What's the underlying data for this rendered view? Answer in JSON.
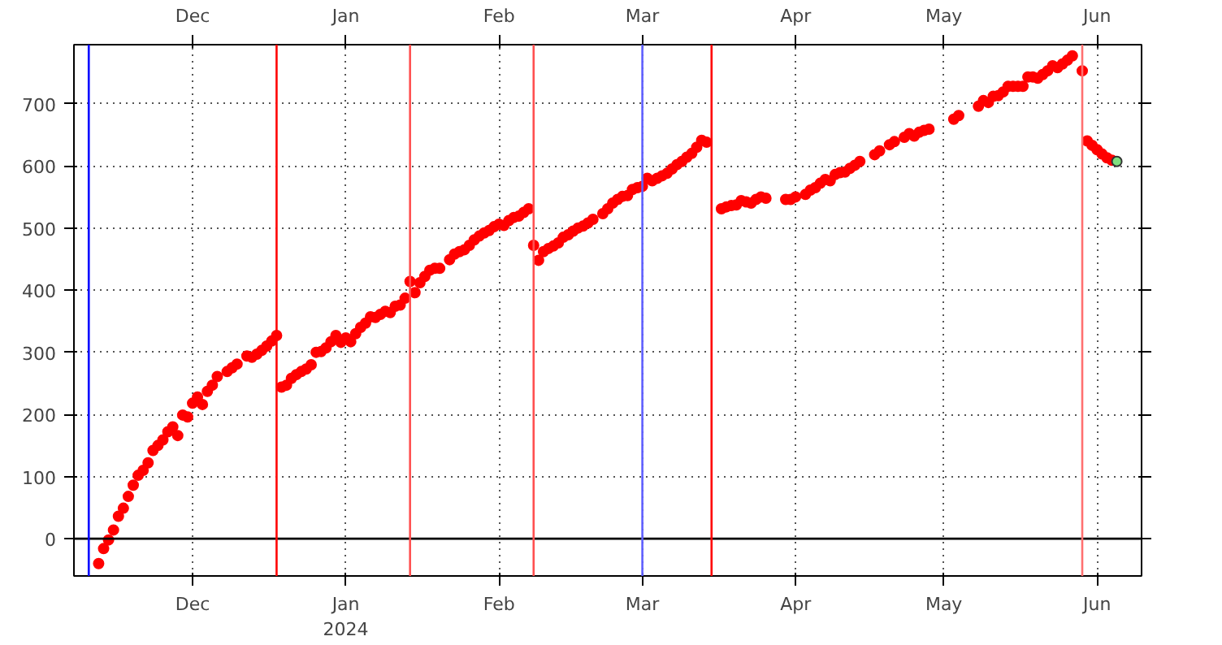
{
  "chart_data": {
    "type": "scatter",
    "xlim": [
      "2023-11-07",
      "2024-06-10"
    ],
    "ylim": [
      -60,
      795
    ],
    "xticks": [
      {
        "value": "2023-12-01",
        "label": "Dec"
      },
      {
        "value": "2024-01-01",
        "label": "Jan\n2024"
      },
      {
        "value": "2024-02-01",
        "label": "Feb"
      },
      {
        "value": "2024-03-01",
        "label": "Mar"
      },
      {
        "value": "2024-04-01",
        "label": "Apr"
      },
      {
        "value": "2024-05-01",
        "label": "May"
      },
      {
        "value": "2024-06-01",
        "label": "Jun"
      }
    ],
    "x2lim": [
      "2023-11-07",
      "2024-06-10"
    ],
    "x2ticks": [
      {
        "value": "2023-12-01",
        "label": "Dec"
      },
      {
        "value": "2024-01-01",
        "label": "Jan"
      },
      {
        "value": "2024-02-01",
        "label": "Feb"
      },
      {
        "value": "2024-03-01",
        "label": "Mar"
      },
      {
        "value": "2024-04-01",
        "label": "Apr"
      },
      {
        "value": "2024-05-01",
        "label": "May"
      },
      {
        "value": "2024-06-01",
        "label": "Jun"
      }
    ],
    "yticks": [
      0,
      100,
      200,
      300,
      400,
      500,
      600,
      700
    ],
    "grid": true,
    "marker": "circle",
    "ref_lines": [
      {
        "axis": "y",
        "value": 0,
        "color": "#000000"
      },
      {
        "axis": "x",
        "value": "2023-11-10",
        "color": "#0000ff"
      },
      {
        "axis": "x",
        "value": "2023-12-18",
        "color": "#ff0000"
      },
      {
        "axis": "x",
        "value": "2024-01-14",
        "color": "#ff5050"
      },
      {
        "axis": "x",
        "value": "2024-02-08",
        "color": "#ff5050"
      },
      {
        "axis": "x",
        "value": "2024-03-01",
        "color": "#6060ff"
      },
      {
        "axis": "x",
        "value": "2024-03-15",
        "color": "#ff0000"
      },
      {
        "axis": "x",
        "value": "2024-05-29",
        "color": "#ff7070"
      }
    ],
    "series": [
      {
        "color": "#ff0000",
        "x": [
          "2023-11-12",
          "2023-11-13",
          "2023-11-14",
          "2023-11-15",
          "2023-11-16",
          "2023-11-17",
          "2023-11-18",
          "2023-11-19",
          "2023-11-20",
          "2023-11-21",
          "2023-11-22",
          "2023-11-23",
          "2023-11-24",
          "2023-11-25",
          "2023-11-26",
          "2023-11-27",
          "2023-11-28",
          "2023-11-29",
          "2023-11-30",
          "2023-12-01",
          "2023-12-02",
          "2023-12-03",
          "2023-12-04",
          "2023-12-05",
          "2023-12-06",
          "2023-12-08",
          "2023-12-09",
          "2023-12-10",
          "2023-12-12",
          "2023-12-13",
          "2023-12-14",
          "2023-12-15",
          "2023-12-16",
          "2023-12-17",
          "2023-12-18",
          "2023-12-19",
          "2023-12-20",
          "2023-12-21",
          "2023-12-22",
          "2023-12-23",
          "2023-12-24",
          "2023-12-25",
          "2023-12-26",
          "2023-12-27",
          "2023-12-28",
          "2023-12-29",
          "2023-12-30",
          "2023-12-31",
          "2024-01-01",
          "2024-01-02",
          "2024-01-03",
          "2024-01-04",
          "2024-01-05",
          "2024-01-06",
          "2024-01-07",
          "2024-01-08",
          "2024-01-09",
          "2024-01-10",
          "2024-01-11",
          "2024-01-12",
          "2024-01-13",
          "2024-01-14",
          "2024-01-15",
          "2024-01-16",
          "2024-01-17",
          "2024-01-18",
          "2024-01-19",
          "2024-01-20",
          "2024-01-22",
          "2024-01-23",
          "2024-01-24",
          "2024-01-25",
          "2024-01-26",
          "2024-01-27",
          "2024-01-28",
          "2024-01-29",
          "2024-01-30",
          "2024-01-31",
          "2024-02-01",
          "2024-02-02",
          "2024-02-03",
          "2024-02-04",
          "2024-02-05",
          "2024-02-06",
          "2024-02-07",
          "2024-02-08",
          "2024-02-09",
          "2024-02-10",
          "2024-02-11",
          "2024-02-12",
          "2024-02-13",
          "2024-02-14",
          "2024-02-15",
          "2024-02-16",
          "2024-02-17",
          "2024-02-18",
          "2024-02-19",
          "2024-02-20",
          "2024-02-22",
          "2024-02-23",
          "2024-02-24",
          "2024-02-25",
          "2024-02-26",
          "2024-02-27",
          "2024-02-28",
          "2024-02-29",
          "2024-03-01",
          "2024-03-02",
          "2024-03-03",
          "2024-03-04",
          "2024-03-05",
          "2024-03-06",
          "2024-03-07",
          "2024-03-08",
          "2024-03-09",
          "2024-03-10",
          "2024-03-11",
          "2024-03-12",
          "2024-03-13",
          "2024-03-14",
          "2024-03-17",
          "2024-03-18",
          "2024-03-19",
          "2024-03-20",
          "2024-03-21",
          "2024-03-22",
          "2024-03-23",
          "2024-03-24",
          "2024-03-25",
          "2024-03-26",
          "2024-03-30",
          "2024-03-31",
          "2024-04-01",
          "2024-04-03",
          "2024-04-04",
          "2024-04-05",
          "2024-04-06",
          "2024-04-07",
          "2024-04-08",
          "2024-04-09",
          "2024-04-10",
          "2024-04-11",
          "2024-04-12",
          "2024-04-13",
          "2024-04-14",
          "2024-04-17",
          "2024-04-18",
          "2024-04-20",
          "2024-04-21",
          "2024-04-23",
          "2024-04-24",
          "2024-04-25",
          "2024-04-26",
          "2024-04-27",
          "2024-04-28",
          "2024-05-03",
          "2024-05-04",
          "2024-05-08",
          "2024-05-09",
          "2024-05-10",
          "2024-05-11",
          "2024-05-12",
          "2024-05-13",
          "2024-05-14",
          "2024-05-15",
          "2024-05-16",
          "2024-05-17",
          "2024-05-18",
          "2024-05-19",
          "2024-05-20",
          "2024-05-21",
          "2024-05-22",
          "2024-05-23",
          "2024-05-24",
          "2024-05-25",
          "2024-05-26",
          "2024-05-27",
          "2024-05-29",
          "2024-05-30",
          "2024-05-31",
          "2024-06-01",
          "2024-06-02",
          "2024-06-03",
          "2024-06-04"
        ],
        "values": [
          -40,
          -16,
          -2,
          14,
          36,
          49,
          68,
          86,
          102,
          110,
          122,
          142,
          150,
          159,
          172,
          180,
          166,
          199,
          196,
          218,
          228,
          216,
          237,
          247,
          261,
          269,
          275,
          281,
          294,
          292,
          297,
          303,
          310,
          318,
          327,
          244,
          247,
          258,
          264,
          269,
          273,
          280,
          300,
          301,
          307,
          317,
          327,
          316,
          323,
          317,
          330,
          340,
          347,
          357,
          356,
          361,
          366,
          364,
          374,
          376,
          387,
          414,
          396,
          412,
          422,
          432,
          435,
          435,
          449,
          458,
          462,
          465,
          472,
          481,
          487,
          492,
          496,
          502,
          506,
          504,
          512,
          517,
          519,
          525,
          531,
          472,
          448,
          462,
          467,
          471,
          476,
          485,
          489,
          495,
          500,
          503,
          508,
          514,
          523,
          531,
          540,
          546,
          551,
          552,
          562,
          565,
          567,
          580,
          576,
          580,
          584,
          588,
          595,
          602,
          607,
          614,
          620,
          630,
          641,
          638,
          531,
          534,
          536,
          537,
          544,
          542,
          540,
          546,
          550,
          548,
          546,
          546,
          550,
          554,
          561,
          565,
          572,
          578,
          576,
          586,
          589,
          590,
          596,
          601,
          607,
          618,
          624,
          634,
          639,
          646,
          652,
          648,
          654,
          657,
          659,
          675,
          681,
          696,
          705,
          702,
          712,
          713,
          719,
          728,
          728,
          728,
          728,
          743,
          743,
          741,
          747,
          753,
          761,
          758,
          764,
          770,
          777,
          753,
          640,
          633,
          626,
          619,
          613,
          609
        ]
      },
      {
        "color": "#80e080",
        "x": [
          "2024-06-05"
        ],
        "values": [
          607
        ]
      }
    ]
  }
}
